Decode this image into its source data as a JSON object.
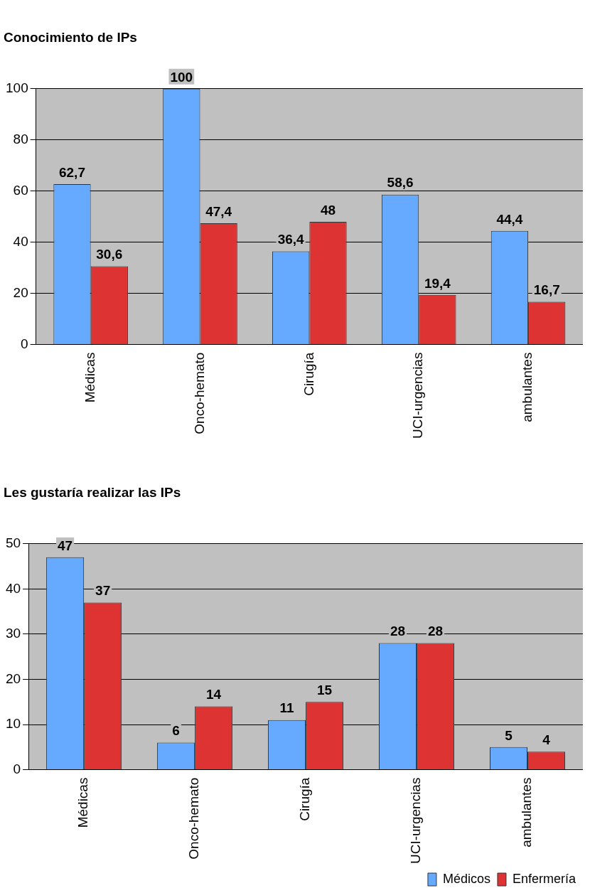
{
  "chart_data": [
    {
      "type": "bar",
      "title": "Conocimiento de IPs",
      "categories": [
        "Médicas",
        "Onco-hemato",
        "Cirugía",
        "UCI-urgencias",
        "ambulantes"
      ],
      "series": [
        {
          "color": "#66aaff",
          "values": [
            62.7,
            100,
            36.4,
            58.6,
            44.4
          ],
          "value_labels": [
            "62,7",
            "100",
            "36,4",
            "58,6",
            "44,4"
          ]
        },
        {
          "color": "#dd3333",
          "values": [
            30.6,
            47.4,
            48,
            19.4,
            16.7
          ],
          "value_labels": [
            "30,6",
            "47,4",
            "48",
            "19,4",
            "16,7"
          ]
        }
      ],
      "ylim": [
        0,
        100
      ],
      "yticks": [
        0,
        20,
        40,
        60,
        80,
        100
      ],
      "grid": "y",
      "legend": false
    },
    {
      "type": "bar",
      "title": "Les gustaría realizar las IPs",
      "categories": [
        "Médicas",
        "Onco-hemato",
        "Cirugía",
        "UCI-urgencias",
        "ambulantes"
      ],
      "series": [
        {
          "name": "Médicos",
          "color": "#66aaff",
          "values": [
            47,
            6,
            11,
            28,
            5
          ]
        },
        {
          "name": "Enfermería",
          "color": "#dd3333",
          "values": [
            37,
            14,
            15,
            28,
            4
          ]
        }
      ],
      "ylim": [
        0,
        50
      ],
      "yticks": [
        0,
        10,
        20,
        30,
        40,
        50
      ],
      "grid": "y",
      "data_labels": true,
      "legend": "bottom right"
    }
  ]
}
